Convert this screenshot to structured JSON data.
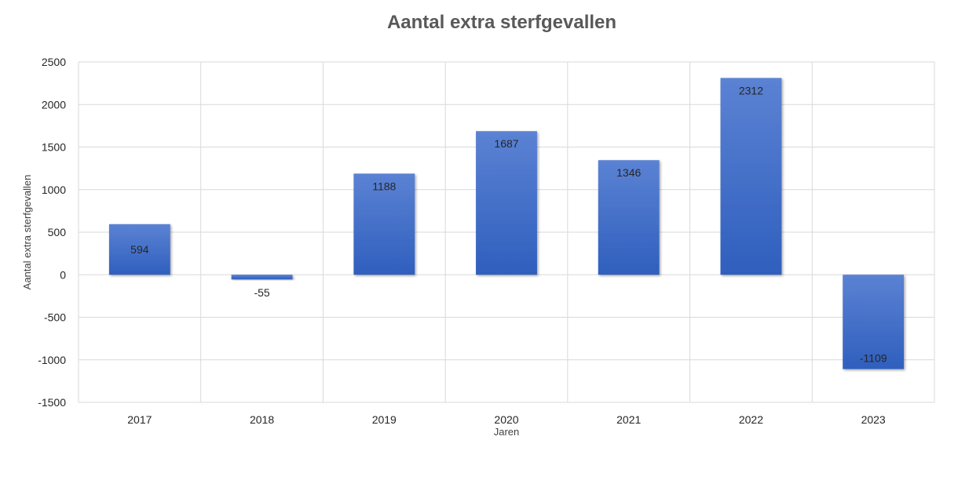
{
  "chart_data": {
    "type": "bar",
    "title": "Aantal extra sterfgevallen",
    "xlabel": "Jaren",
    "ylabel": "Aantal extra sterfgevallen",
    "categories": [
      "2017",
      "2018",
      "2019",
      "2020",
      "2021",
      "2022",
      "2023"
    ],
    "values": [
      594,
      -55,
      1188,
      1687,
      1346,
      2312,
      -1109
    ],
    "data_labels": [
      "594",
      "-55",
      "1188",
      "1687",
      "1346",
      "2312",
      "-1109"
    ],
    "ylim": [
      -1500,
      2500
    ],
    "yticks": [
      2500,
      2000,
      1500,
      1000,
      500,
      0,
      -500,
      -1000,
      -1500
    ],
    "ytick_labels": [
      "2500",
      "2000",
      "1500",
      "1000",
      "500",
      "0",
      "-500",
      "-1000",
      "-1500"
    ],
    "grid": true,
    "legend": "none",
    "colors": {
      "bar_top": "#5b82d3",
      "bar_bottom": "#2f5fbe"
    }
  }
}
